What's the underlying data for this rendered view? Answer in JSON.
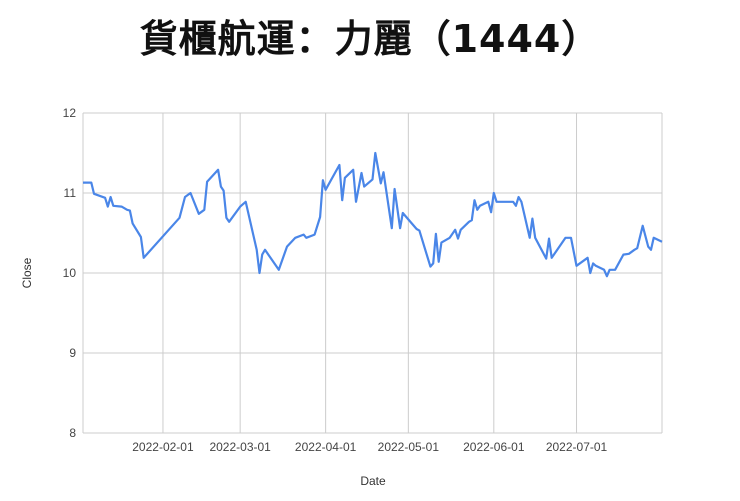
{
  "chart_data": {
    "type": "line",
    "title": "貨櫃航運：力麗（1444）",
    "xlabel": "Date",
    "ylabel": "Close",
    "xlim": [
      "2022-01-03",
      "2022-08-01"
    ],
    "ylim": [
      8,
      12
    ],
    "yticks": [
      "8",
      "9",
      "10",
      "11",
      "12"
    ],
    "xticks": [
      "2022-02-01",
      "2022-03-01",
      "2022-04-01",
      "2022-05-01",
      "2022-06-01",
      "2022-07-01"
    ],
    "grid": true,
    "line_color": "#4a86e8",
    "series": [
      {
        "x": [
          "2022-01-03",
          "2022-01-06",
          "2022-01-07",
          "2022-01-11",
          "2022-01-12",
          "2022-01-13",
          "2022-01-14",
          "2022-01-17",
          "2022-01-19",
          "2022-01-20",
          "2022-01-21",
          "2022-01-24",
          "2022-01-25",
          "2022-02-07",
          "2022-02-09",
          "2022-02-11",
          "2022-02-14",
          "2022-02-16",
          "2022-02-17",
          "2022-02-21",
          "2022-02-22",
          "2022-02-23",
          "2022-02-24",
          "2022-02-25",
          "2022-03-01",
          "2022-03-03",
          "2022-03-07",
          "2022-03-08",
          "2022-03-09",
          "2022-03-10",
          "2022-03-12",
          "2022-03-15",
          "2022-03-18",
          "2022-03-21",
          "2022-03-24",
          "2022-03-25",
          "2022-03-28",
          "2022-03-30",
          "2022-03-31",
          "2022-04-01",
          "2022-04-06",
          "2022-04-07",
          "2022-04-08",
          "2022-04-11",
          "2022-04-12",
          "2022-04-14",
          "2022-04-15",
          "2022-04-18",
          "2022-04-19",
          "2022-04-21",
          "2022-04-22",
          "2022-04-25",
          "2022-04-26",
          "2022-04-28",
          "2022-04-29",
          "2022-05-04",
          "2022-05-05",
          "2022-05-09",
          "2022-05-10",
          "2022-05-11",
          "2022-05-12",
          "2022-05-13",
          "2022-05-16",
          "2022-05-18",
          "2022-05-19",
          "2022-05-20",
          "2022-05-23",
          "2022-05-24",
          "2022-05-25",
          "2022-05-26",
          "2022-05-27",
          "2022-05-30",
          "2022-05-31",
          "2022-06-01",
          "2022-06-02",
          "2022-06-08",
          "2022-06-09",
          "2022-06-10",
          "2022-06-11",
          "2022-06-14",
          "2022-06-15",
          "2022-06-16",
          "2022-06-20",
          "2022-06-21",
          "2022-06-22",
          "2022-06-27",
          "2022-06-29",
          "2022-07-01",
          "2022-07-05",
          "2022-07-06",
          "2022-07-07",
          "2022-07-08",
          "2022-07-11",
          "2022-07-12",
          "2022-07-13",
          "2022-07-15",
          "2022-07-18",
          "2022-07-20",
          "2022-07-22",
          "2022-07-23",
          "2022-07-25",
          "2022-07-27",
          "2022-07-28",
          "2022-07-29",
          "2022-08-01"
        ],
        "y": [
          11.13,
          11.13,
          10.99,
          10.94,
          10.83,
          10.95,
          10.84,
          10.83,
          10.79,
          10.78,
          10.62,
          10.45,
          10.19,
          10.69,
          10.95,
          11.0,
          10.74,
          10.79,
          11.14,
          11.29,
          11.08,
          11.03,
          10.69,
          10.64,
          10.83,
          10.89,
          10.29,
          10.0,
          10.23,
          10.29,
          10.19,
          10.04,
          10.33,
          10.44,
          10.48,
          10.44,
          10.48,
          10.7,
          11.16,
          11.04,
          11.35,
          10.91,
          11.19,
          11.29,
          10.89,
          11.25,
          11.08,
          11.17,
          11.5,
          11.12,
          11.26,
          10.56,
          11.05,
          10.56,
          10.75,
          10.55,
          10.53,
          10.08,
          10.12,
          10.49,
          10.14,
          10.38,
          10.44,
          10.54,
          10.43,
          10.54,
          10.64,
          10.66,
          10.91,
          10.79,
          10.84,
          10.89,
          10.76,
          11.0,
          10.89,
          10.89,
          10.84,
          10.95,
          10.89,
          10.44,
          10.68,
          10.44,
          10.18,
          10.43,
          10.19,
          10.44,
          10.44,
          10.09,
          10.19,
          10.0,
          10.12,
          10.09,
          10.04,
          9.96,
          10.04,
          10.04,
          10.23,
          10.24,
          10.29,
          10.31,
          10.59,
          10.33,
          10.29,
          10.44,
          10.39
        ]
      }
    ]
  }
}
